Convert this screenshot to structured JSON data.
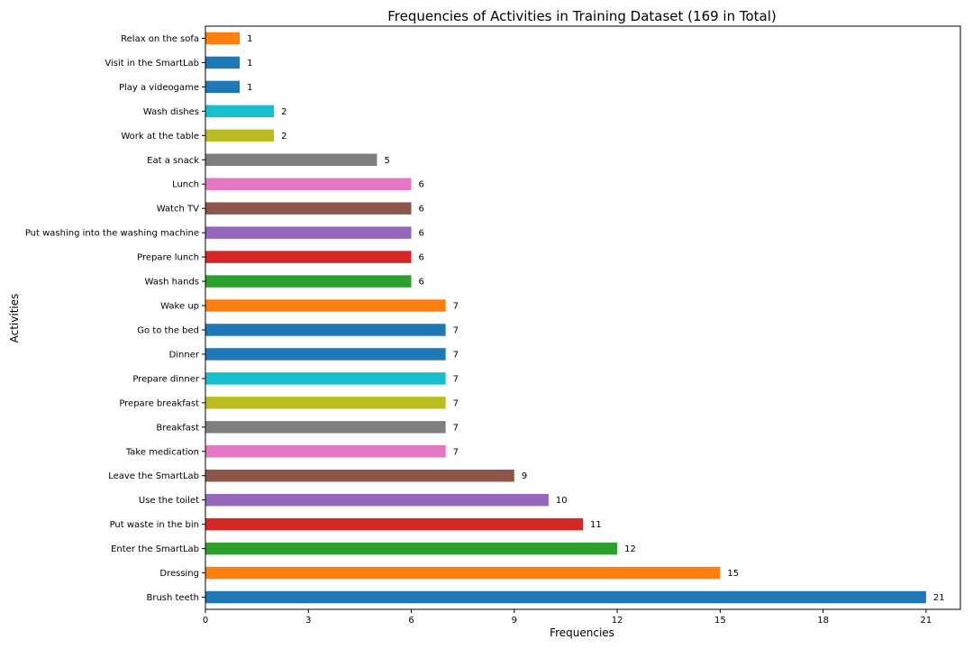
{
  "chart_data": {
    "type": "bar",
    "orientation": "horizontal",
    "title": "Frequencies of Activities in Training Dataset (169 in Total)",
    "xlabel": "Frequencies",
    "ylabel": "Activities",
    "xlim": [
      0,
      22
    ],
    "xticks": [
      0,
      3,
      6,
      9,
      12,
      15,
      18,
      21
    ],
    "grid": false,
    "legend": "none",
    "categories": [
      "Brush teeth",
      "Dressing",
      "Enter the SmartLab",
      "Put waste in the bin",
      "Use the toilet",
      "Leave the SmartLab",
      "Take medication",
      "Breakfast",
      "Prepare breakfast",
      "Prepare dinner",
      "Dinner",
      "Go to the bed",
      "Wake up",
      "Wash hands",
      "Prepare lunch",
      "Put washing into the washing machine",
      "Watch TV",
      "Lunch",
      "Eat a snack",
      "Work at the table",
      "Wash dishes",
      "Play a videogame",
      "Visit in the SmartLab",
      "Relax on the sofa"
    ],
    "values": [
      21,
      15,
      12,
      11,
      10,
      9,
      7,
      7,
      7,
      7,
      7,
      7,
      7,
      6,
      6,
      6,
      6,
      6,
      5,
      2,
      2,
      1,
      1,
      1
    ],
    "colors": [
      "#1f77b4",
      "#ff7f0e",
      "#2ca02c",
      "#d62728",
      "#9467bd",
      "#8c564b",
      "#e377c2",
      "#7f7f7f",
      "#bcbd22",
      "#17becf",
      "#1f77b4",
      "#1f77b4",
      "#ff7f0e",
      "#2ca02c",
      "#d62728",
      "#9467bd",
      "#8c564b",
      "#e377c2",
      "#7f7f7f",
      "#bcbd22",
      "#17becf",
      "#1f77b4",
      "#1f77b4",
      "#ff7f0e"
    ]
  }
}
